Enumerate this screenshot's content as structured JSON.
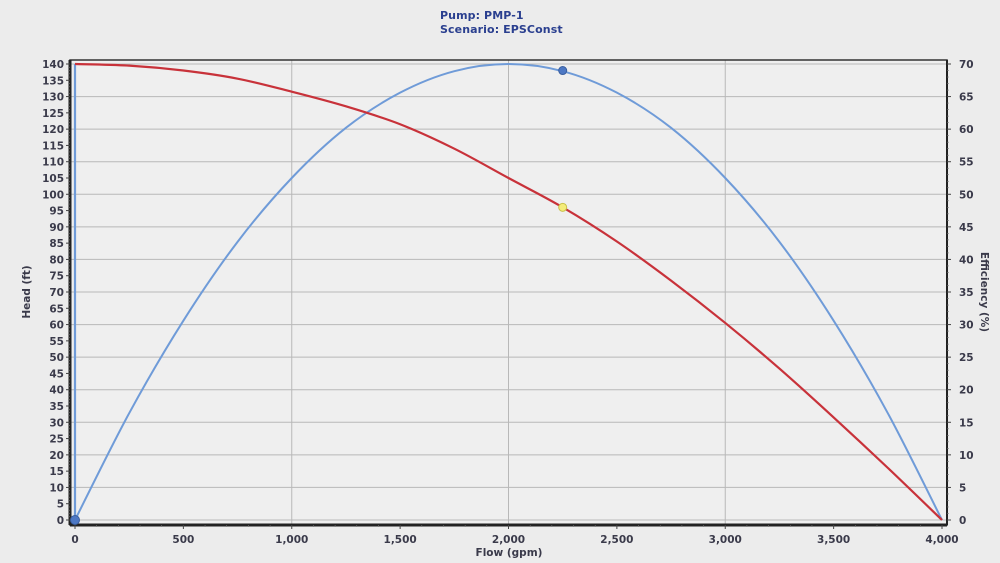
{
  "title": {
    "line1": "Pump: PMP-1",
    "line2": "Scenario: EPSConst"
  },
  "colors": {
    "head_curve": "#c8323a",
    "efficiency_curve": "#6f9bd8",
    "operating_point_head": "#f4ec7a",
    "operating_point_efficiency": "#4d78c4",
    "grid": "#b8b8b8",
    "axis": "#333333",
    "background": "#ececec"
  },
  "chart_data": {
    "type": "line",
    "title": "Pump: PMP-1 / Scenario: EPSConst",
    "xlabel": "Flow (gpm)",
    "ylabel": "Head (ft)",
    "y2label": "Efficiency (%)",
    "xlim": [
      0,
      4000
    ],
    "ylim": [
      0,
      140
    ],
    "y2lim": [
      0,
      70
    ],
    "grid": true,
    "legend": "none",
    "x_ticks": [
      "0",
      "500",
      "1,000",
      "1,500",
      "2,000",
      "2,500",
      "3,000",
      "3,500",
      "4,000"
    ],
    "y_ticks": [
      "0",
      "5",
      "10",
      "15",
      "20",
      "25",
      "30",
      "35",
      "40",
      "45",
      "50",
      "55",
      "60",
      "65",
      "70",
      "75",
      "80",
      "85",
      "90",
      "95",
      "100",
      "105",
      "110",
      "115",
      "120",
      "125",
      "130",
      "135",
      "140"
    ],
    "y2_ticks": [
      "0",
      "5",
      "10",
      "15",
      "20",
      "25",
      "30",
      "35",
      "40",
      "45",
      "50",
      "55",
      "60",
      "65",
      "70"
    ],
    "x": [
      0,
      250,
      500,
      750,
      1000,
      1250,
      1500,
      1750,
      2000,
      2250,
      2500,
      2750,
      3000,
      3250,
      3500,
      3750,
      4000
    ],
    "series": [
      {
        "name": "Head (ft)",
        "axis": "left",
        "values": [
          140,
          139.5,
          138,
          135.5,
          131.5,
          127,
          121.5,
          114,
          105,
          96,
          85.5,
          73.5,
          60.5,
          46.5,
          31.5,
          16,
          0
        ]
      },
      {
        "name": "Efficiency (%)",
        "axis": "right",
        "values": [
          0,
          16.4,
          30.6,
          42.7,
          52.5,
          60.2,
          65.6,
          68.9,
          70,
          68.9,
          65.6,
          60.2,
          52.5,
          42.7,
          30.6,
          16.4,
          0
        ]
      }
    ],
    "annotations": [
      {
        "type": "point",
        "series": "Efficiency (%)",
        "x": 2250,
        "y": 69,
        "label": "operating point efficiency"
      },
      {
        "type": "point",
        "series": "Head (ft)",
        "x": 2250,
        "y": 96,
        "label": "operating point head"
      },
      {
        "type": "point",
        "series": "Efficiency (%)",
        "x": 0,
        "y": 0,
        "label": "origin marker"
      }
    ]
  }
}
